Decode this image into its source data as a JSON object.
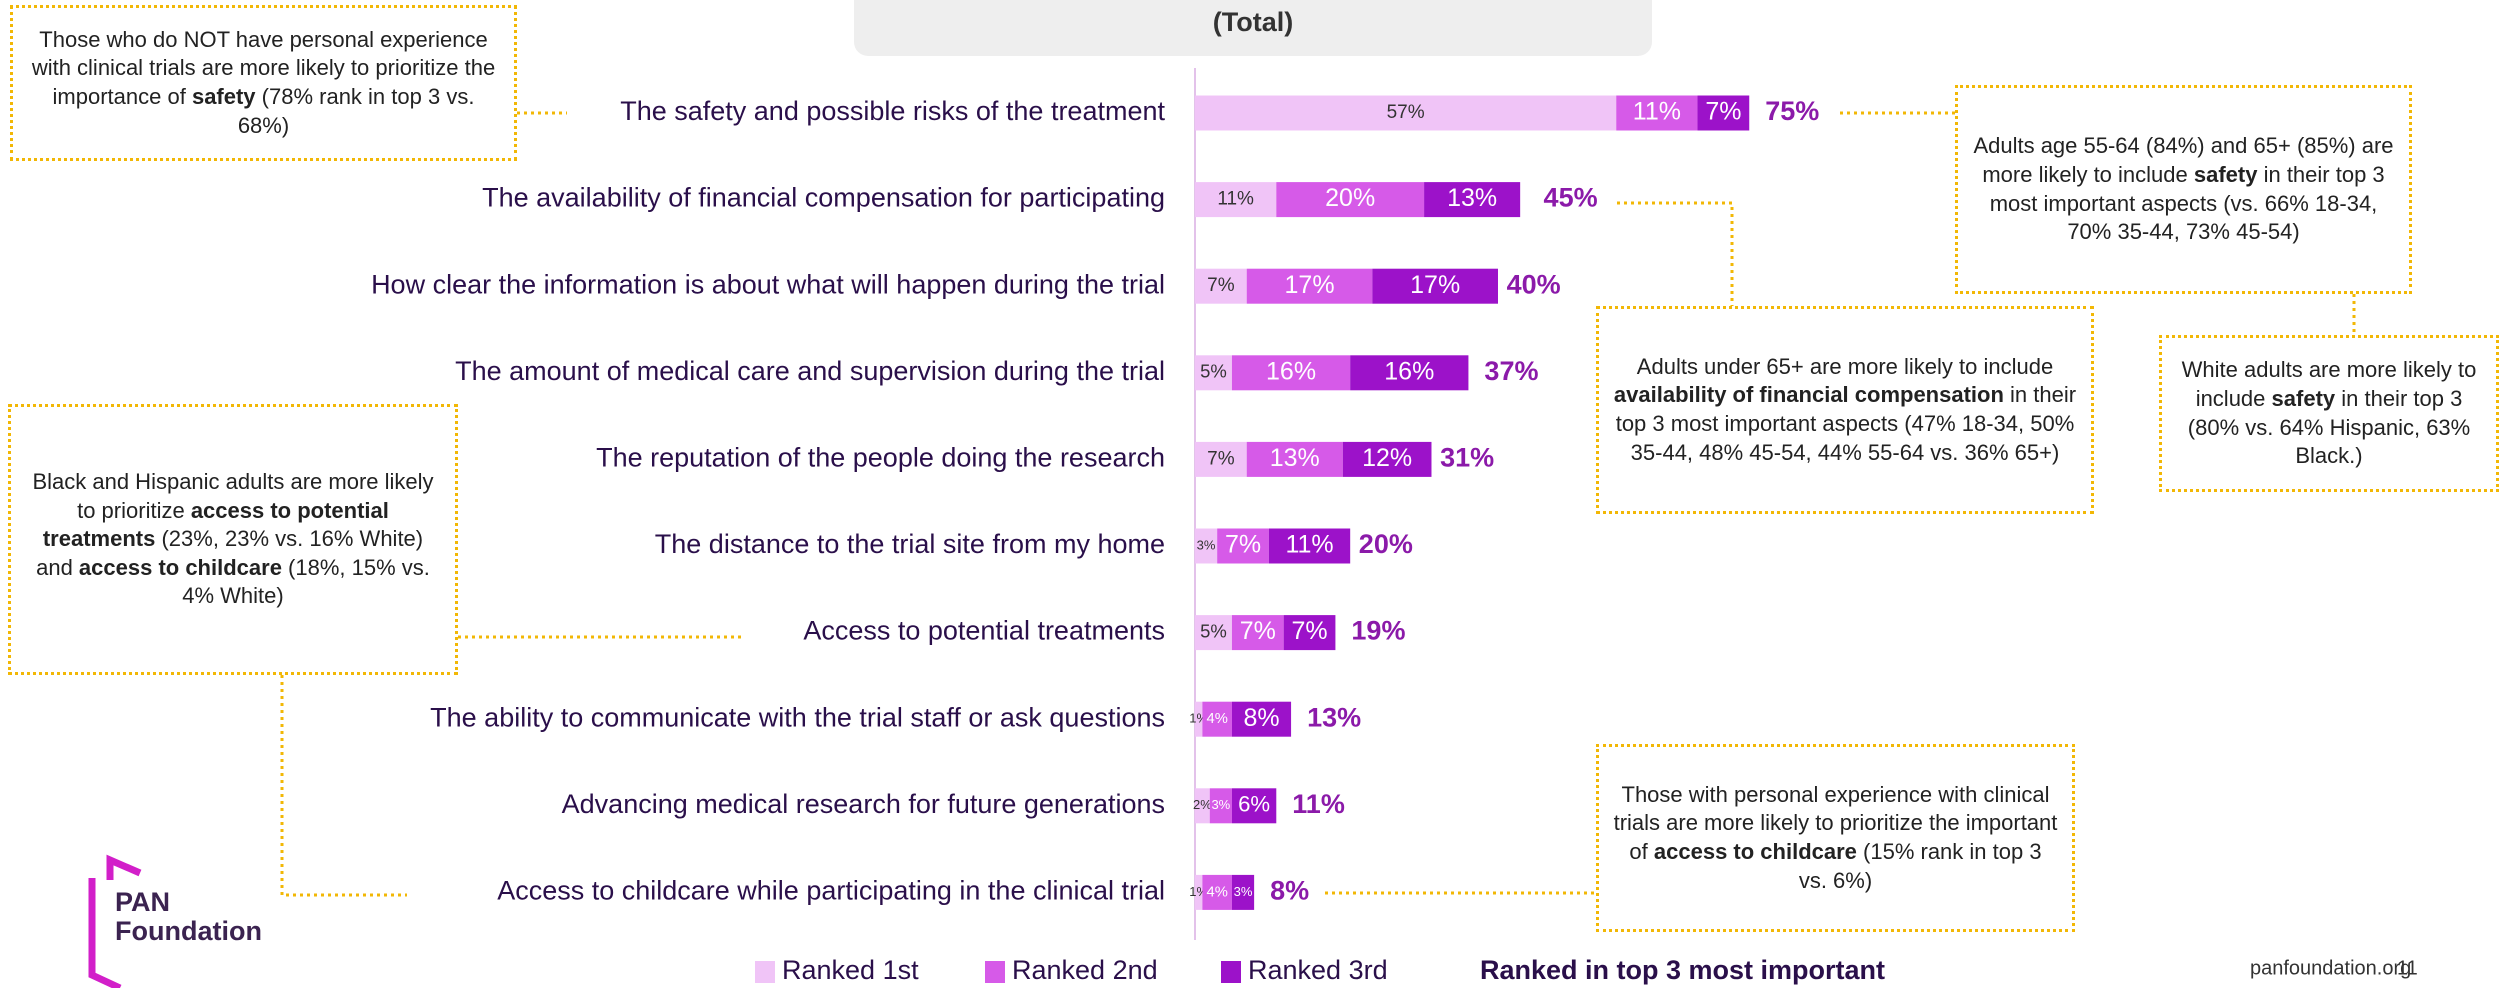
{
  "chart_data": {
    "type": "stacked-barh",
    "title": "(Total)",
    "categories": [
      "The safety and possible risks of the treatment",
      "The availability of financial compensation for participating",
      "How clear the information is about what will happen during the trial",
      "The amount of medical care and supervision during the trial",
      "The reputation of the people doing the research",
      "The distance to the trial site from my home",
      "Access to potential treatments",
      "The ability to communicate with the trial staff or ask questions",
      "Advancing medical research for future generations",
      "Access to childcare while participating in the clinical trial"
    ],
    "series": [
      {
        "name": "Ranked 1st",
        "color": "#f0c4f7",
        "values": [
          57,
          11,
          7,
          5,
          7,
          3,
          5,
          1,
          2,
          1
        ],
        "value_labels": [
          "57%",
          "11%",
          "7%",
          "5%",
          "7%",
          "3%",
          "5%",
          "1%",
          "2%",
          "1%"
        ]
      },
      {
        "name": "Ranked 2nd",
        "color": "#d65ae8",
        "values": [
          11,
          20,
          17,
          16,
          13,
          7,
          7,
          4,
          3,
          4
        ],
        "value_labels": [
          "11%",
          "20%",
          "17%",
          "16%",
          "13%",
          "7%",
          "7%",
          "4%",
          "3%",
          "4%"
        ]
      },
      {
        "name": "Ranked 3rd",
        "color": "#9c12c9",
        "values": [
          7,
          13,
          17,
          16,
          12,
          11,
          7,
          8,
          6,
          3
        ],
        "value_labels": [
          "7%",
          "13%",
          "17%",
          "16%",
          "12%",
          "11%",
          "7%",
          "8%",
          "6%",
          "3%"
        ]
      }
    ],
    "totals": {
      "name": "Ranked in top 3 most important",
      "color": "#8b1aa9",
      "values": [
        75,
        45,
        40,
        37,
        31,
        20,
        19,
        13,
        11,
        8
      ],
      "value_labels": [
        "75%",
        "45%",
        "40%",
        "37%",
        "31%",
        "20%",
        "19%",
        "13%",
        "11%",
        "8%"
      ]
    },
    "xlim": [
      0,
      100
    ],
    "annotations": [
      {
        "segments": [
          {
            "text": "Those who do NOT have personal experience with clinical trials are more likely to prioritize the importance of "
          },
          {
            "text": "safety",
            "bold": true
          },
          {
            "text": " (78% rank in top 3 vs. 68%)"
          }
        ]
      },
      {
        "segments": [
          {
            "text": "Adults age 55-64 (84%) and 65+ (85%) are more likely to include "
          },
          {
            "text": "safety",
            "bold": true
          },
          {
            "text": " in their top 3 most important aspects (vs. 66% 18-34, 70% 35-44, 73% 45-54)"
          }
        ]
      },
      {
        "segments": [
          {
            "text": "Adults under 65+ are more likely to include "
          },
          {
            "text": "availability of financial compensation",
            "bold": true
          },
          {
            "text": " in their top 3 most important aspects (47% 18-34, 50% 35-44, 48% 45-54, 44% 55-64 vs. 36% 65+)"
          }
        ]
      },
      {
        "segments": [
          {
            "text": "White adults are more likely to include "
          },
          {
            "text": "safety",
            "bold": true
          },
          {
            "text": " in their top 3 (80% vs. 64% Hispanic, 63% Black.)"
          }
        ]
      },
      {
        "segments": [
          {
            "text": "Black and Hispanic adults are more likely to prioritize "
          },
          {
            "text": "access to potential treatments",
            "bold": true
          },
          {
            "text": " (23%, 23% vs. 16% White) and "
          },
          {
            "text": "access to childcare",
            "bold": true
          },
          {
            "text": " (18%, 15% vs. 4% White)"
          }
        ]
      },
      {
        "segments": [
          {
            "text": "Those with personal experience with clinical trials are more likely to prioritize the important of "
          },
          {
            "text": "access to childcare",
            "bold": true
          },
          {
            "text": " (15% rank in top 3 vs. 6%)"
          }
        ]
      }
    ]
  },
  "logo": {
    "line1": "PAN",
    "line2": "Foundation"
  },
  "footer": {
    "url": "panfoundation.org",
    "page": "11"
  }
}
